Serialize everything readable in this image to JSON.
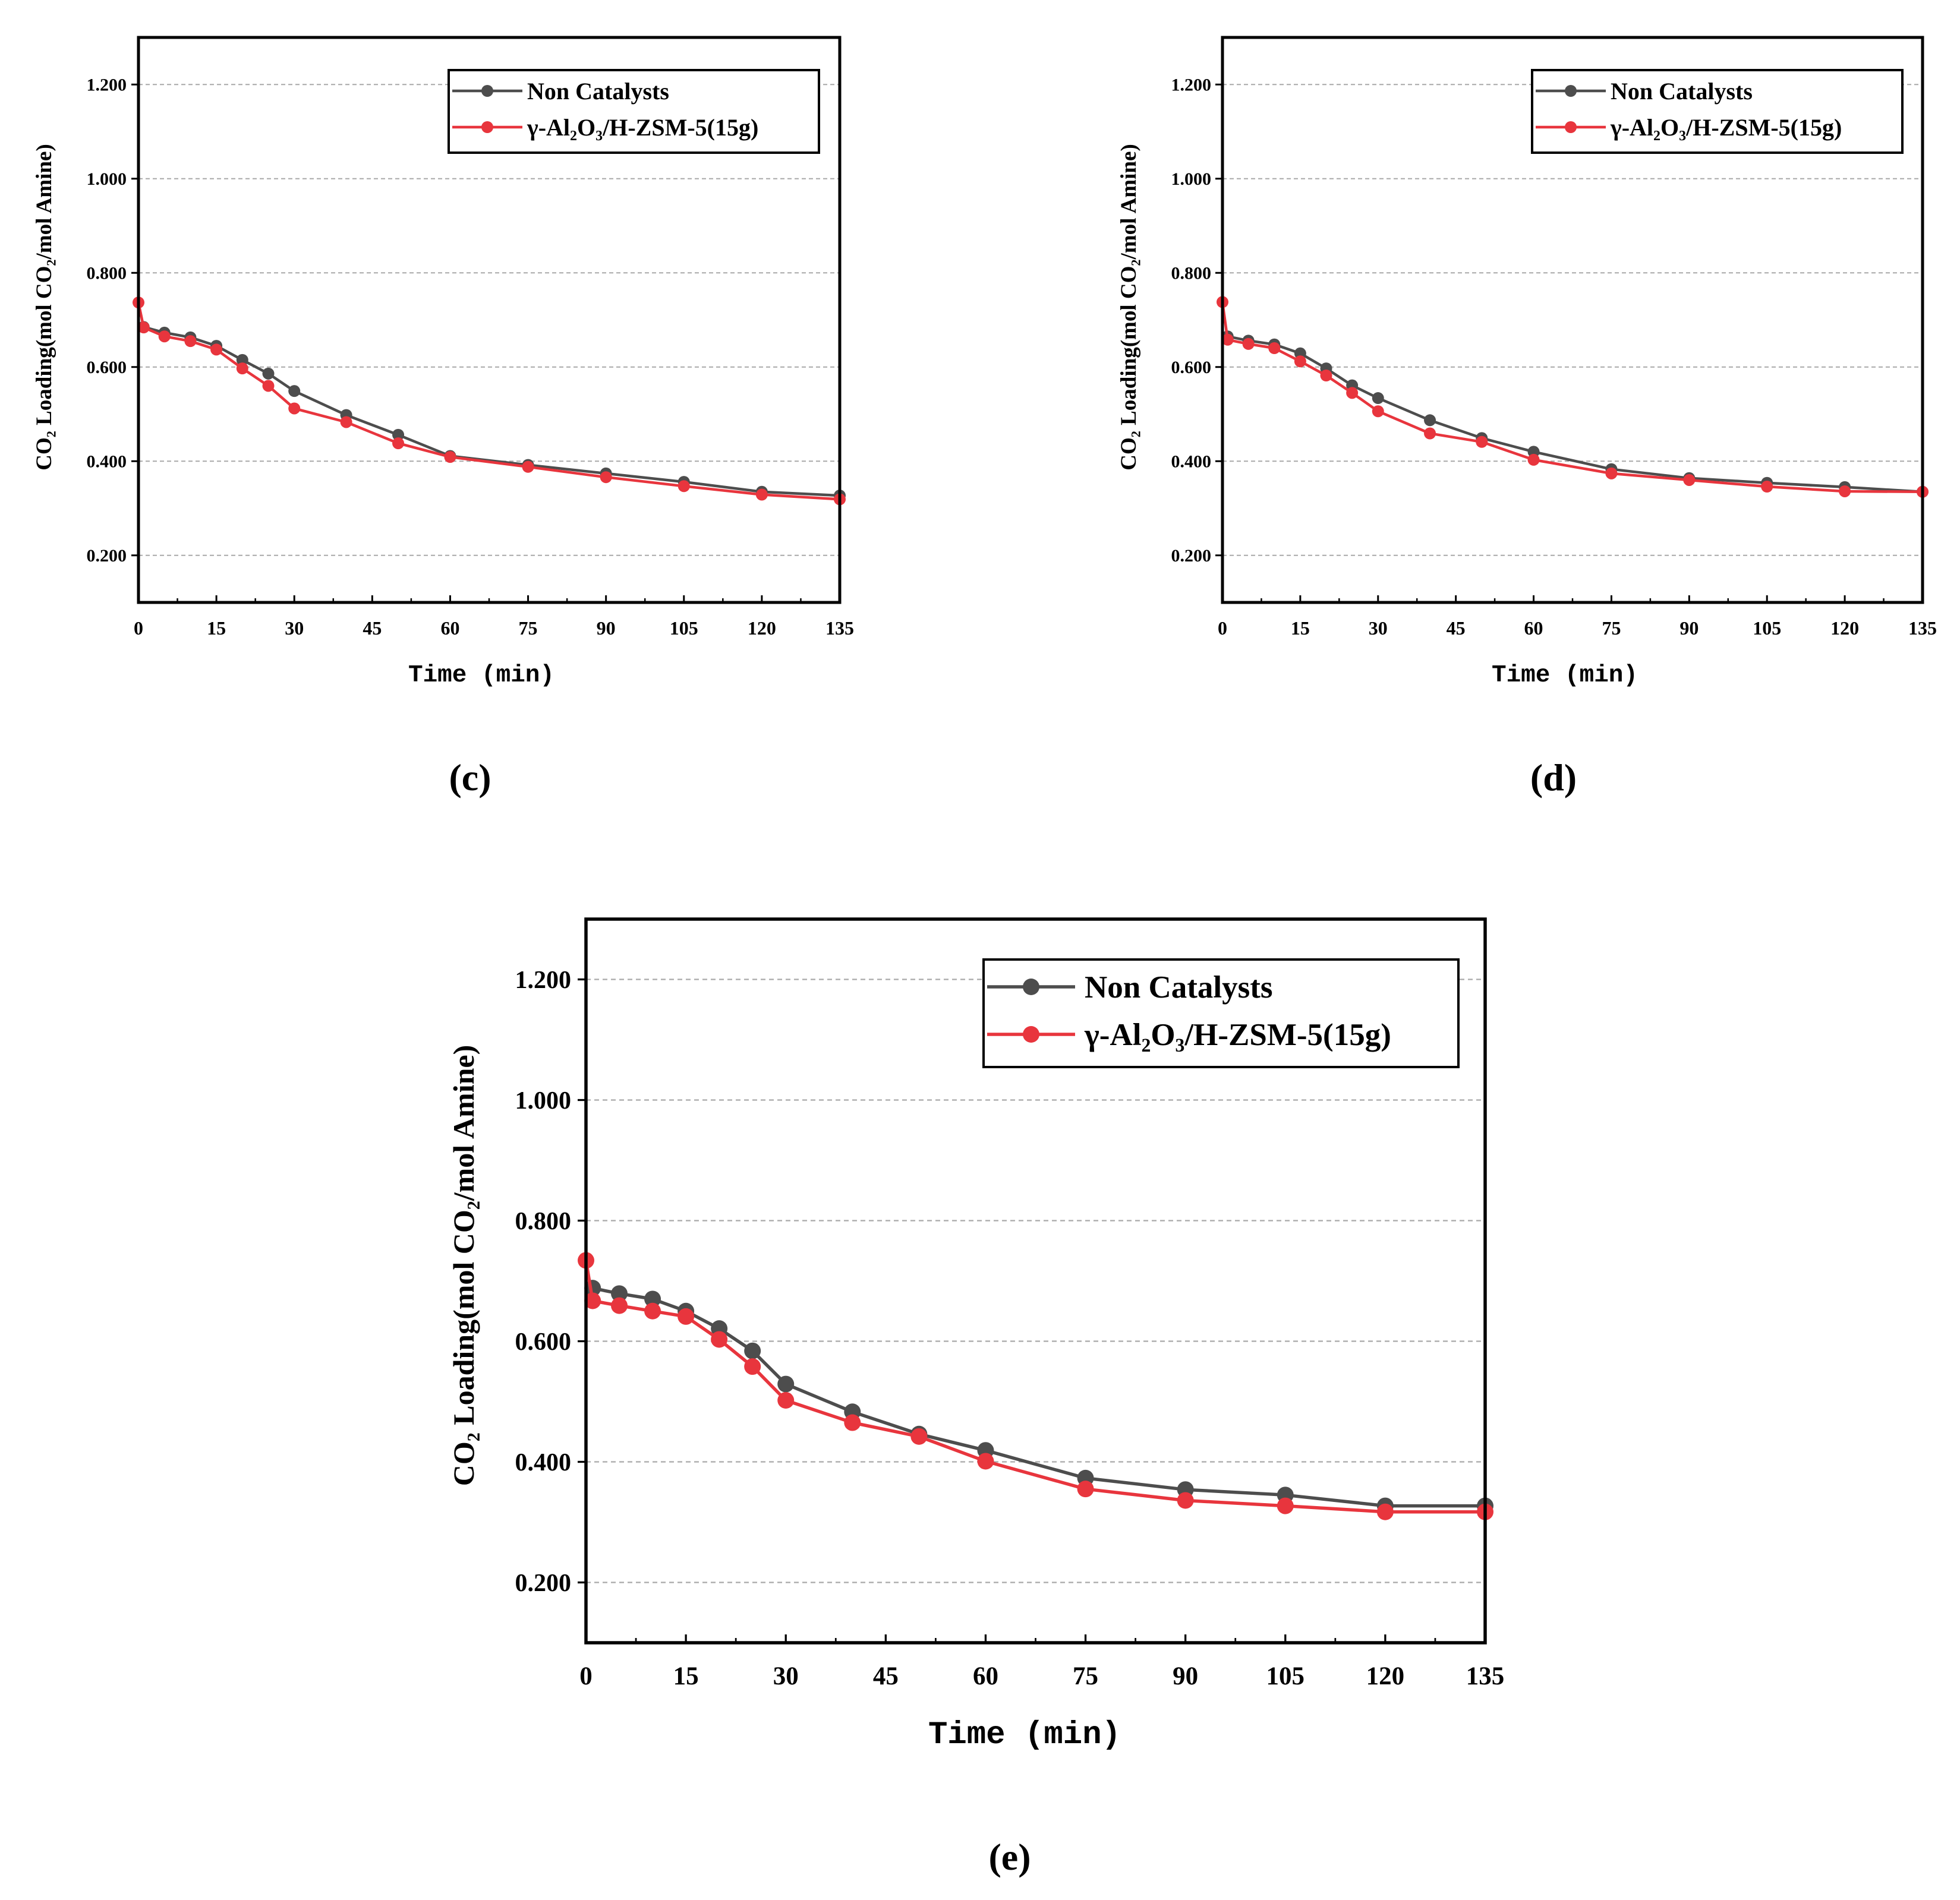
{
  "colors": {
    "grid": "#a9a9a9",
    "axis": "#000000",
    "legend_border": "#000000"
  },
  "chart_data": [
    {
      "panel": "(c)",
      "type": "line",
      "xlabel": "Time (min)",
      "ylabel": "CO₂ Loading(mol CO₂/mol Amine)",
      "xlim": [
        0,
        135
      ],
      "ylim": [
        0.1,
        1.3
      ],
      "x_tick_labels": [
        "0",
        "15",
        "30",
        "45",
        "60",
        "75",
        "90",
        "105",
        "120",
        "135"
      ],
      "y_tick_labels": [
        "0.200",
        "0.400",
        "0.600",
        "0.800",
        "1.000",
        "1.200"
      ],
      "grid": "horizontal dashed",
      "legend_position": "top-right",
      "series": [
        {
          "name": "Non Catalysts",
          "color": "#4d4d4d",
          "x": [
            1,
            5,
            10,
            15,
            20,
            25,
            30,
            40,
            50,
            60,
            75,
            90,
            105,
            120,
            135
          ],
          "y": [
            0.685,
            0.673,
            0.663,
            0.645,
            0.615,
            0.586,
            0.549,
            0.498,
            0.456,
            0.411,
            0.392,
            0.374,
            0.356,
            0.335,
            0.327
          ]
        },
        {
          "name": "γ-Al₂O₃/H-ZSM-5(15g)",
          "color": "#e8353d",
          "x": [
            0,
            1,
            5,
            10,
            15,
            20,
            25,
            30,
            40,
            50,
            60,
            75,
            90,
            105,
            120,
            135
          ],
          "y": [
            0.737,
            0.684,
            0.665,
            0.655,
            0.637,
            0.597,
            0.56,
            0.512,
            0.483,
            0.438,
            0.409,
            0.388,
            0.366,
            0.347,
            0.329,
            0.319
          ]
        }
      ]
    },
    {
      "panel": "(d)",
      "type": "line",
      "xlabel": "Time (min)",
      "ylabel": "CO₂ Loading(mol CO₂/mol Amine)",
      "xlim": [
        0,
        135
      ],
      "ylim": [
        0.1,
        1.3
      ],
      "x_tick_labels": [
        "0",
        "15",
        "30",
        "45",
        "60",
        "75",
        "90",
        "105",
        "120",
        "135"
      ],
      "y_tick_labels": [
        "0.200",
        "0.400",
        "0.600",
        "0.800",
        "1.000",
        "1.200"
      ],
      "grid": "horizontal dashed",
      "legend_position": "top-right",
      "series": [
        {
          "name": "Non Catalysts",
          "color": "#4d4d4d",
          "x": [
            1,
            5,
            10,
            15,
            20,
            25,
            30,
            40,
            50,
            60,
            75,
            90,
            105,
            120,
            135
          ],
          "y": [
            0.665,
            0.656,
            0.648,
            0.629,
            0.597,
            0.561,
            0.534,
            0.487,
            0.449,
            0.42,
            0.383,
            0.364,
            0.354,
            0.345,
            0.335
          ]
        },
        {
          "name": "γ-Al₂O₃/H-ZSM-5(15g)",
          "color": "#e8353d",
          "x": [
            0,
            1,
            5,
            10,
            15,
            20,
            25,
            30,
            40,
            50,
            60,
            75,
            90,
            105,
            120,
            135
          ],
          "y": [
            0.738,
            0.658,
            0.649,
            0.64,
            0.612,
            0.582,
            0.545,
            0.506,
            0.459,
            0.441,
            0.403,
            0.374,
            0.36,
            0.346,
            0.336,
            0.335
          ]
        }
      ]
    },
    {
      "panel": "(e)",
      "type": "line",
      "xlabel": "Time (min)",
      "ylabel": "CO₂ Loading(mol CO₂/mol Amine)",
      "xlim": [
        0,
        135
      ],
      "ylim": [
        0.1,
        1.3
      ],
      "x_tick_labels": [
        "0",
        "15",
        "30",
        "45",
        "60",
        "75",
        "90",
        "105",
        "120",
        "135"
      ],
      "y_tick_labels": [
        "0.200",
        "0.400",
        "0.600",
        "0.800",
        "1.000",
        "1.200"
      ],
      "grid": "horizontal dashed",
      "legend_position": "top-right",
      "series": [
        {
          "name": "Non Catalysts",
          "color": "#4d4d4d",
          "x": [
            1,
            5,
            10,
            15,
            20,
            25,
            30,
            40,
            50,
            60,
            75,
            90,
            105,
            120,
            135
          ],
          "y": [
            0.688,
            0.679,
            0.67,
            0.65,
            0.621,
            0.584,
            0.529,
            0.483,
            0.446,
            0.419,
            0.373,
            0.354,
            0.345,
            0.327,
            0.327
          ]
        },
        {
          "name": "γ-Al₂O₃/H-ZSM-5(15g)",
          "color": "#e8353d",
          "x": [
            0,
            1,
            5,
            10,
            15,
            20,
            25,
            30,
            40,
            50,
            60,
            75,
            90,
            105,
            120,
            135
          ],
          "y": [
            0.734,
            0.667,
            0.659,
            0.65,
            0.641,
            0.603,
            0.558,
            0.502,
            0.465,
            0.442,
            0.401,
            0.355,
            0.336,
            0.327,
            0.317,
            0.317
          ]
        }
      ]
    }
  ]
}
